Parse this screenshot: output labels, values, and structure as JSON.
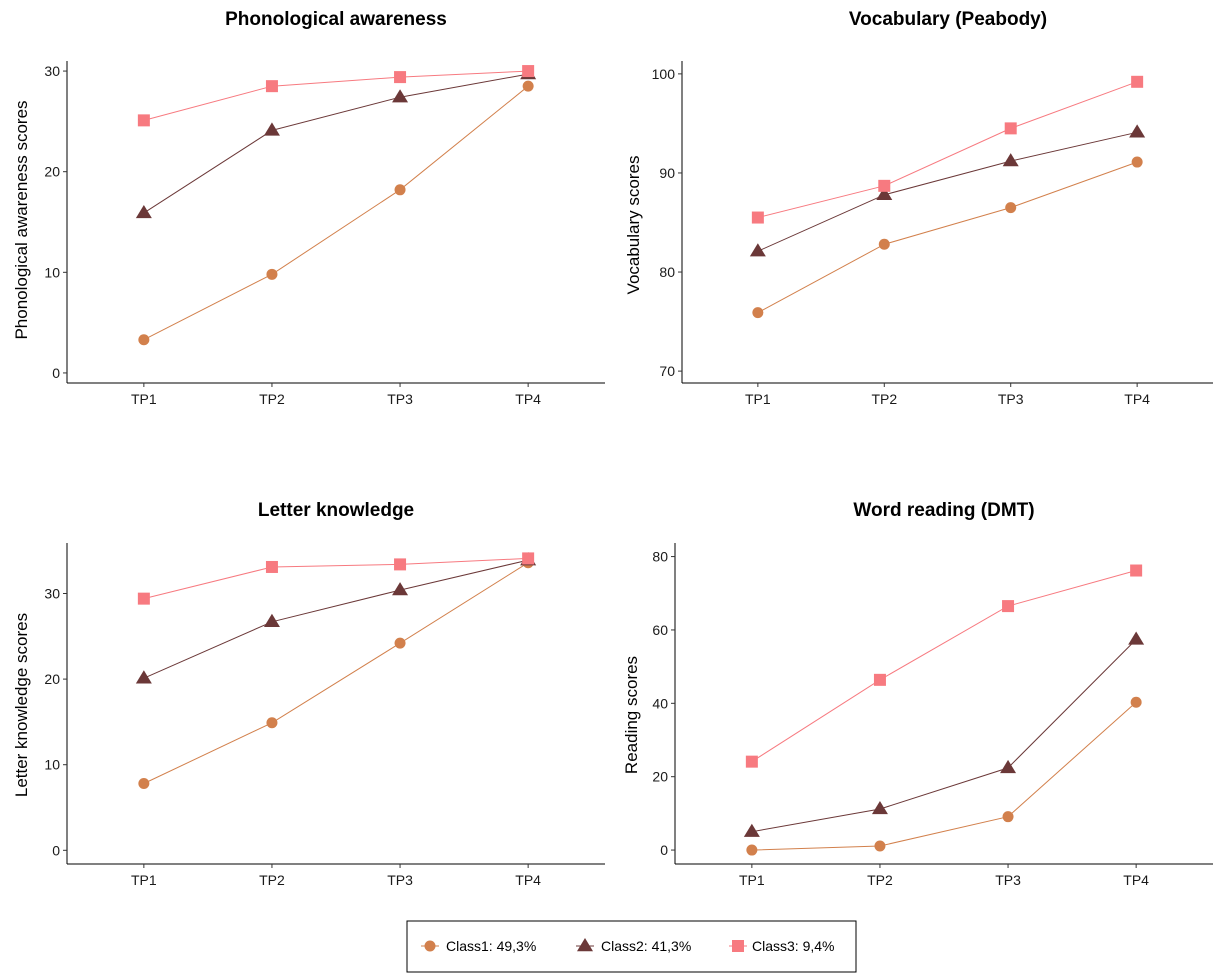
{
  "colors": {
    "class1": "#D2804C",
    "class2": "#6B3838",
    "class3": "#F77A80"
  },
  "legend": {
    "items": [
      {
        "label": "Class1: 49,3%",
        "marker": "circle",
        "color_key": "class1"
      },
      {
        "label": "Class2: 41,3%",
        "marker": "triangle",
        "color_key": "class2"
      },
      {
        "label": "Class3: 9,4%",
        "marker": "square",
        "color_key": "class3"
      }
    ],
    "placement": "bottom"
  },
  "chart_data": [
    {
      "type": "line",
      "title": "Phonological awareness",
      "xlabel": "",
      "ylabel": "Phonological awareness scores",
      "categories": [
        "TP1",
        "TP2",
        "TP3",
        "TP4"
      ],
      "ylim": [
        -1,
        31
      ],
      "yticks": [
        0,
        10,
        20,
        30
      ],
      "grid": false,
      "series": [
        {
          "name": "Class1: 49,3%",
          "marker": "circle",
          "values": [
            3.3,
            9.8,
            18.2,
            28.5
          ]
        },
        {
          "name": "Class2: 41,3%",
          "marker": "triangle",
          "values": [
            15.9,
            24.1,
            27.4,
            29.7
          ]
        },
        {
          "name": "Class3: 9,4%",
          "marker": "square",
          "values": [
            25.1,
            28.5,
            29.4,
            30.0
          ]
        }
      ]
    },
    {
      "type": "line",
      "title": "Vocabulary (Peabody)",
      "xlabel": "",
      "ylabel": "Vocabulary scores",
      "categories": [
        "TP1",
        "TP2",
        "TP3",
        "TP4"
      ],
      "ylim": [
        68.8,
        101.3
      ],
      "yticks": [
        70,
        80,
        90,
        100
      ],
      "grid": false,
      "series": [
        {
          "name": "Class1: 49,3%",
          "marker": "circle",
          "values": [
            75.9,
            82.8,
            86.5,
            91.1
          ]
        },
        {
          "name": "Class2: 41,3%",
          "marker": "triangle",
          "values": [
            82.1,
            87.8,
            91.2,
            94.1
          ]
        },
        {
          "name": "Class3: 9,4%",
          "marker": "square",
          "values": [
            85.5,
            88.7,
            94.5,
            99.2
          ]
        }
      ]
    },
    {
      "type": "line",
      "title": "Letter knowledge",
      "xlabel": "",
      "ylabel": "Letter knowledge scores",
      "categories": [
        "TP1",
        "TP2",
        "TP3",
        "TP4"
      ],
      "ylim": [
        -1.6,
        35.9
      ],
      "yticks": [
        0,
        10,
        20,
        30
      ],
      "grid": false,
      "series": [
        {
          "name": "Class1: 49,3%",
          "marker": "circle",
          "values": [
            7.8,
            14.9,
            24.2,
            33.6
          ]
        },
        {
          "name": "Class2: 41,3%",
          "marker": "triangle",
          "values": [
            20.1,
            26.7,
            30.4,
            33.9
          ]
        },
        {
          "name": "Class3: 9,4%",
          "marker": "square",
          "values": [
            29.4,
            33.1,
            33.4,
            34.1
          ]
        }
      ]
    },
    {
      "type": "line",
      "title": "Word reading (DMT)",
      "xlabel": "",
      "ylabel": "Reading scores",
      "categories": [
        "TP1",
        "TP2",
        "TP3",
        "TP4"
      ],
      "ylim": [
        -3.8,
        83.7
      ],
      "yticks": [
        0,
        20,
        40,
        60,
        80
      ],
      "grid": false,
      "series": [
        {
          "name": "Class1: 49,3%",
          "marker": "circle",
          "values": [
            0.0,
            1.1,
            9.1,
            40.3
          ]
        },
        {
          "name": "Class2: 41,3%",
          "marker": "triangle",
          "values": [
            5.0,
            11.2,
            22.4,
            57.4
          ]
        },
        {
          "name": "Class3: 9,4%",
          "marker": "square",
          "values": [
            24.1,
            46.4,
            66.5,
            76.2
          ]
        }
      ]
    }
  ]
}
